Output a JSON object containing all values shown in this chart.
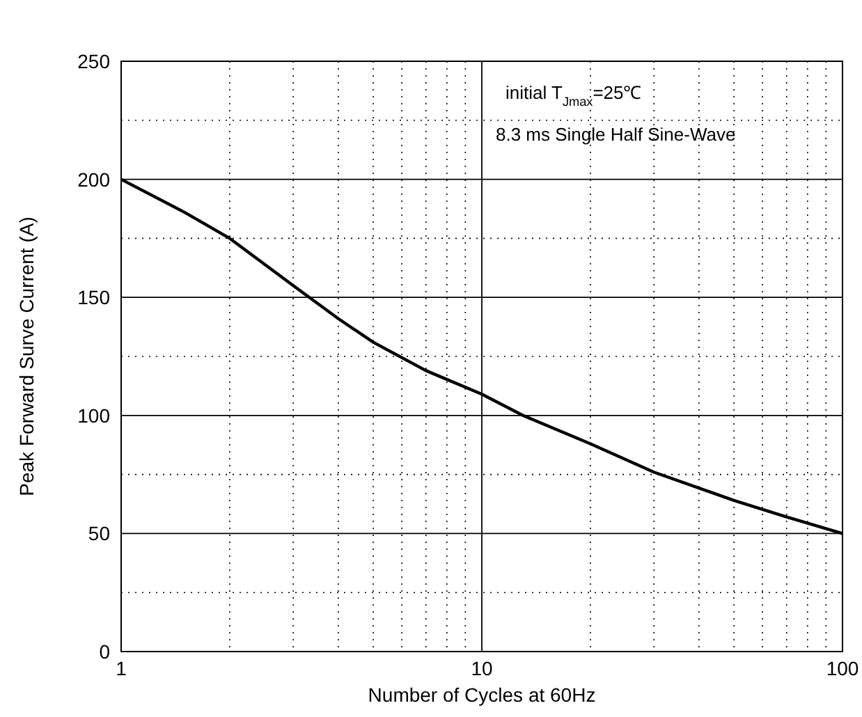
{
  "chart_data": {
    "type": "line",
    "xlabel": "Number of Cycles at 60Hz",
    "ylabel": "Peak Forward Surve Current (A)",
    "annotations": [
      "initial T$_{Jmax}$=25℃",
      "8.3 ms Single Half Sine-Wave"
    ],
    "log": "x",
    "grid": true,
    "line_style": "solid",
    "xlim": [
      1,
      100
    ],
    "xticks": [
      1,
      {
        "value": 2,
        "label": null
      },
      {
        "value": 3,
        "label": null
      },
      {
        "value": 4,
        "label": null
      },
      {
        "value": 5,
        "label": null
      },
      {
        "value": 6,
        "label": null
      },
      {
        "value": 7,
        "label": null
      },
      {
        "value": 8,
        "label": null
      },
      {
        "value": 9,
        "label": null
      },
      10,
      {
        "value": 20,
        "label": null
      },
      {
        "value": 30,
        "label": null
      },
      {
        "value": 40,
        "label": null
      },
      {
        "value": 50,
        "label": null
      },
      {
        "value": 60,
        "label": null
      },
      {
        "value": 70,
        "label": null
      },
      {
        "value": 80,
        "label": null
      },
      {
        "value": 90,
        "label": null
      },
      100
    ],
    "ylim": [
      0,
      250
    ],
    "yticks": [
      0,
      {
        "value": 25,
        "label": null
      },
      50,
      {
        "value": 75,
        "label": null
      },
      100,
      {
        "value": 125,
        "label": null
      },
      150,
      {
        "value": 175,
        "label": null
      },
      200,
      {
        "value": 225,
        "label": null
      },
      250
    ],
    "series": [
      {
        "color": "#000000",
        "x": [
          1,
          1.5,
          2,
          3,
          4,
          5,
          7,
          10,
          13,
          20,
          30,
          50,
          70,
          100
        ],
        "values": [
          200,
          186,
          175,
          155,
          141,
          131,
          119,
          109,
          100,
          88,
          76,
          64,
          57,
          50
        ]
      }
    ]
  }
}
